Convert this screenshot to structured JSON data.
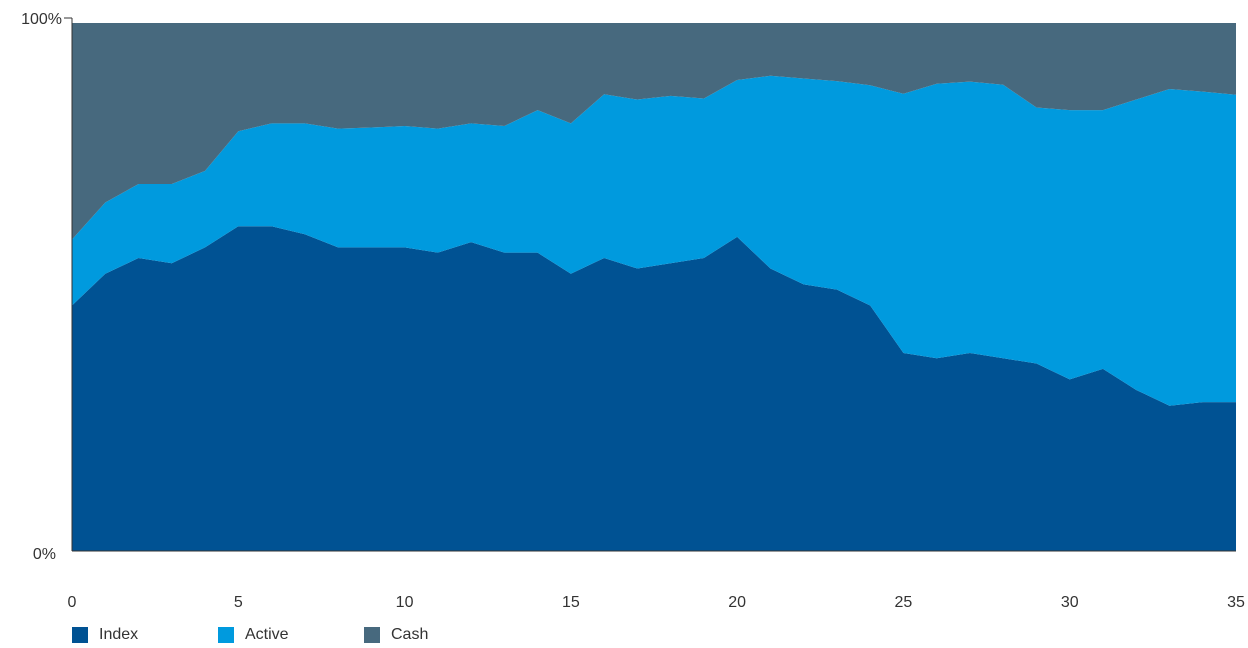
{
  "chart_data": {
    "type": "area",
    "stacked": true,
    "normalized": true,
    "x": [
      0,
      1,
      2,
      3,
      4,
      5,
      6,
      7,
      8,
      9,
      10,
      11,
      12,
      13,
      14,
      15,
      16,
      17,
      18,
      19,
      20,
      21,
      22,
      23,
      24,
      25,
      26,
      27,
      28,
      29,
      30,
      31,
      32,
      33,
      34,
      35
    ],
    "series": [
      {
        "name": "Index",
        "color": "#005293",
        "values": [
          46.5,
          52.5,
          55.5,
          54.5,
          57.5,
          61.5,
          61.5,
          60,
          57.5,
          57.5,
          57.5,
          56.5,
          58.5,
          56.5,
          56.5,
          52.5,
          55.5,
          53.5,
          54.5,
          55.5,
          59.5,
          53.5,
          50.5,
          49.5,
          46.5,
          37.5,
          36.5,
          37.5,
          36.5,
          35.5,
          32.5,
          34.5,
          30.5,
          27.5,
          28.2,
          28.2
        ]
      },
      {
        "name": "Active",
        "color": "#009ADE",
        "values": [
          12.5,
          13.5,
          14,
          15,
          14.5,
          18,
          19.5,
          21,
          22.5,
          22.7,
          23,
          23.5,
          22.5,
          24,
          27,
          28.5,
          31,
          32,
          31.7,
          30.2,
          29.7,
          36.5,
          39,
          39.5,
          41.7,
          49.1,
          52,
          51.4,
          51.8,
          48.5,
          51,
          49,
          55,
          60,
          58.8,
          58.2
        ]
      },
      {
        "name": "Cash",
        "color": "#47697E",
        "values": [
          41,
          34,
          30.5,
          30.5,
          28,
          20.5,
          19,
          19,
          20,
          19.8,
          19.5,
          20,
          19,
          19.5,
          16.5,
          19,
          13.5,
          14.5,
          13.8,
          14.3,
          10.8,
          10,
          10.5,
          11,
          11.8,
          13.4,
          11.5,
          11.1,
          11.7,
          16,
          16.5,
          16.5,
          14.5,
          12.5,
          13,
          13.6
        ]
      }
    ],
    "y_tick_labels": [
      "0%",
      "100%"
    ],
    "x_ticks": [
      0,
      5,
      10,
      15,
      20,
      25,
      30,
      35
    ],
    "xlim": [
      0,
      35
    ],
    "ylim": [
      0,
      100
    ],
    "title": "",
    "xlabel": "",
    "ylabel": "",
    "grid": false,
    "legend_position": "bottom-left"
  }
}
